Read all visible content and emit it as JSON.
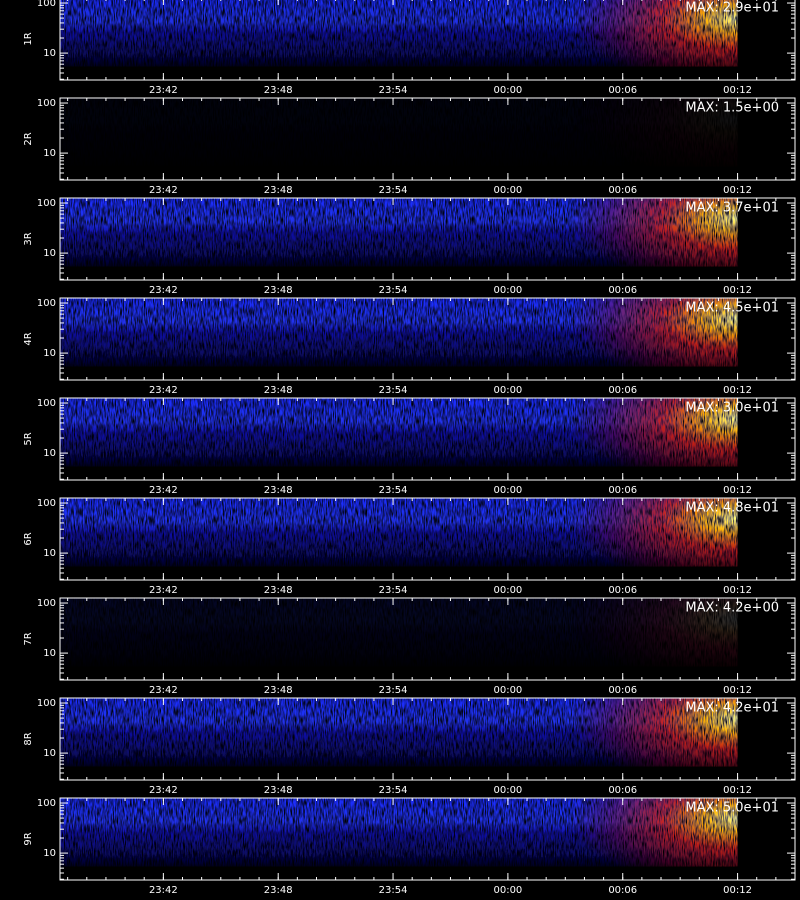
{
  "chart_data": [
    {
      "type": "spectrogram",
      "ylabel": "1R",
      "annotation": "MAX: 2.9e+01",
      "zmax": 29,
      "ylog": true,
      "ylim": [
        2.9,
        126
      ],
      "yticks": [
        10,
        100
      ],
      "xlim": [
        -23.4,
        15
      ],
      "xticks": [
        {
          "value": -18,
          "label": "23:42"
        },
        {
          "value": -12,
          "label": "23:48"
        },
        {
          "value": -6,
          "label": "23:54"
        },
        {
          "value": 0,
          "label": "00:00"
        },
        {
          "value": 6,
          "label": "00:06"
        },
        {
          "value": 12,
          "label": "00:12"
        }
      ]
    },
    {
      "type": "spectrogram",
      "ylabel": "2R",
      "annotation": "MAX: 1.5e+00",
      "zmax": 1.5,
      "ylog": true,
      "ylim": [
        2.9,
        126
      ],
      "yticks": [
        10,
        100
      ],
      "xlim": [
        -23.4,
        15
      ],
      "xticks": [
        {
          "value": -18,
          "label": "23:42"
        },
        {
          "value": -12,
          "label": "23:48"
        },
        {
          "value": -6,
          "label": "23:54"
        },
        {
          "value": 0,
          "label": "00:00"
        },
        {
          "value": 6,
          "label": "00:06"
        },
        {
          "value": 12,
          "label": "00:12"
        }
      ]
    },
    {
      "type": "spectrogram",
      "ylabel": "3R",
      "annotation": "MAX: 3.7e+01",
      "zmax": 37,
      "ylog": true,
      "ylim": [
        2.9,
        126
      ],
      "yticks": [
        10,
        100
      ],
      "xlim": [
        -23.4,
        15
      ],
      "xticks": [
        {
          "value": -18,
          "label": "23:42"
        },
        {
          "value": -12,
          "label": "23:48"
        },
        {
          "value": -6,
          "label": "23:54"
        },
        {
          "value": 0,
          "label": "00:00"
        },
        {
          "value": 6,
          "label": "00:06"
        },
        {
          "value": 12,
          "label": "00:12"
        }
      ]
    },
    {
      "type": "spectrogram",
      "ylabel": "4R",
      "annotation": "MAX: 4.5e+01",
      "zmax": 45,
      "ylog": true,
      "ylim": [
        2.9,
        126
      ],
      "yticks": [
        10,
        100
      ],
      "xlim": [
        -23.4,
        15
      ],
      "xticks": [
        {
          "value": -18,
          "label": "23:42"
        },
        {
          "value": -12,
          "label": "23:48"
        },
        {
          "value": -6,
          "label": "23:54"
        },
        {
          "value": 0,
          "label": "00:00"
        },
        {
          "value": 6,
          "label": "00:06"
        },
        {
          "value": 12,
          "label": "00:12"
        }
      ]
    },
    {
      "type": "spectrogram",
      "ylabel": "5R",
      "annotation": "MAX: 3.0e+01",
      "zmax": 30,
      "ylog": true,
      "ylim": [
        2.9,
        126
      ],
      "yticks": [
        10,
        100
      ],
      "xlim": [
        -23.4,
        15
      ],
      "xticks": [
        {
          "value": -18,
          "label": "23:42"
        },
        {
          "value": -12,
          "label": "23:48"
        },
        {
          "value": -6,
          "label": "23:54"
        },
        {
          "value": 0,
          "label": "00:00"
        },
        {
          "value": 6,
          "label": "00:06"
        },
        {
          "value": 12,
          "label": "00:12"
        }
      ]
    },
    {
      "type": "spectrogram",
      "ylabel": "6R",
      "annotation": "MAX: 4.8e+01",
      "zmax": 48,
      "ylog": true,
      "ylim": [
        2.9,
        126
      ],
      "yticks": [
        10,
        100
      ],
      "xlim": [
        -23.4,
        15
      ],
      "xticks": [
        {
          "value": -18,
          "label": "23:42"
        },
        {
          "value": -12,
          "label": "23:48"
        },
        {
          "value": -6,
          "label": "23:54"
        },
        {
          "value": 0,
          "label": "00:00"
        },
        {
          "value": 6,
          "label": "00:06"
        },
        {
          "value": 12,
          "label": "00:12"
        }
      ]
    },
    {
      "type": "spectrogram",
      "ylabel": "7R",
      "annotation": "MAX: 4.2e+00",
      "zmax": 4.2,
      "ylog": true,
      "ylim": [
        2.9,
        126
      ],
      "yticks": [
        10,
        100
      ],
      "xlim": [
        -23.4,
        15
      ],
      "xticks": [
        {
          "value": -18,
          "label": "23:42"
        },
        {
          "value": -12,
          "label": "23:48"
        },
        {
          "value": -6,
          "label": "23:54"
        },
        {
          "value": 0,
          "label": "00:00"
        },
        {
          "value": 6,
          "label": "00:06"
        },
        {
          "value": 12,
          "label": "00:12"
        }
      ]
    },
    {
      "type": "spectrogram",
      "ylabel": "8R",
      "annotation": "MAX: 4.2e+01",
      "zmax": 42,
      "ylog": true,
      "ylim": [
        2.9,
        126
      ],
      "yticks": [
        10,
        100
      ],
      "xlim": [
        -23.4,
        15
      ],
      "xticks": [
        {
          "value": -18,
          "label": "23:42"
        },
        {
          "value": -12,
          "label": "23:48"
        },
        {
          "value": -6,
          "label": "23:54"
        },
        {
          "value": 0,
          "label": "00:00"
        },
        {
          "value": 6,
          "label": "00:06"
        },
        {
          "value": 12,
          "label": "00:12"
        }
      ]
    },
    {
      "type": "spectrogram",
      "ylabel": "9R",
      "annotation": "MAX: 5.0e+01",
      "zmax": 50,
      "ylog": true,
      "ylim": [
        2.9,
        126
      ],
      "yticks": [
        10,
        100
      ],
      "xlim": [
        -23.4,
        15
      ],
      "xticks": [
        {
          "value": -18,
          "label": "23:42"
        },
        {
          "value": -12,
          "label": "23:48"
        },
        {
          "value": -6,
          "label": "23:54"
        },
        {
          "value": 0,
          "label": "00:00"
        },
        {
          "value": 6,
          "label": "00:06"
        },
        {
          "value": 12,
          "label": "00:12"
        }
      ]
    }
  ]
}
